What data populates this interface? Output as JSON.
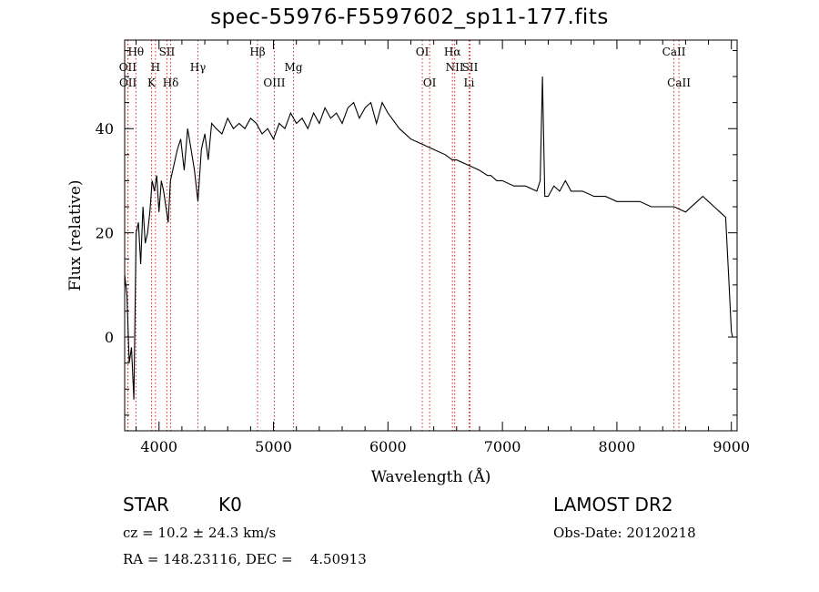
{
  "chart_data": {
    "type": "line",
    "title": "spec-55976-F5597602_sp11-177.fits",
    "xlabel": "Wavelength (Å)",
    "ylabel": "Flux (relative)",
    "xlim": [
      3700,
      9050
    ],
    "ylim": [
      -18,
      57
    ],
    "xticks": [
      4000,
      5000,
      6000,
      7000,
      8000,
      9000
    ],
    "yticks": [
      0,
      20,
      40
    ],
    "grid": false,
    "series": [
      {
        "x": [
          3700,
          3720,
          3740,
          3760,
          3780,
          3800,
          3820,
          3840,
          3860,
          3880,
          3900,
          3920,
          3940,
          3960,
          3980,
          4000,
          4020,
          4040,
          4060,
          4080,
          4100,
          4130,
          4160,
          4190,
          4220,
          4250,
          4280,
          4310,
          4340,
          4370,
          4400,
          4430,
          4460,
          4500,
          4550,
          4600,
          4650,
          4700,
          4750,
          4800,
          4850,
          4900,
          4950,
          5000,
          5050,
          5100,
          5150,
          5200,
          5250,
          5300,
          5350,
          5400,
          5450,
          5500,
          5550,
          5600,
          5650,
          5700,
          5750,
          5800,
          5850,
          5900,
          5950,
          6000,
          6100,
          6200,
          6300,
          6400,
          6500,
          6563,
          6600,
          6700,
          6800,
          6870,
          6900,
          6950,
          7000,
          7100,
          7200,
          7300,
          7330,
          7350,
          7370,
          7400,
          7450,
          7500,
          7550,
          7600,
          7700,
          7800,
          7900,
          8000,
          8100,
          8200,
          8300,
          8400,
          8500,
          8600,
          8700,
          8750,
          8800,
          8850,
          8900,
          8950,
          8980,
          9000,
          9010
        ],
        "values": [
          12,
          8,
          -5,
          -2,
          -12,
          20,
          22,
          14,
          25,
          18,
          20,
          24,
          30,
          28,
          31,
          24,
          30,
          28,
          25,
          22,
          30,
          33,
          36,
          38,
          32,
          40,
          36,
          32,
          26,
          36,
          39,
          34,
          41,
          40,
          39,
          42,
          40,
          41,
          40,
          42,
          41,
          39,
          40,
          38,
          41,
          40,
          43,
          41,
          42,
          40,
          43,
          41,
          44,
          42,
          43,
          41,
          44,
          45,
          42,
          44,
          45,
          41,
          45,
          43,
          40,
          38,
          37,
          36,
          35,
          34,
          34,
          33,
          32,
          31,
          31,
          30,
          30,
          29,
          29,
          28,
          30,
          50,
          27,
          27,
          29,
          28,
          30,
          28,
          28,
          27,
          27,
          26,
          26,
          26,
          25,
          25,
          25,
          24,
          26,
          27,
          26,
          25,
          24,
          23,
          10,
          1,
          0
        ]
      }
    ],
    "line_markers": [
      {
        "label": "Hθ",
        "x": 3798,
        "row": 0
      },
      {
        "label": "SII",
        "x": 4069,
        "row": 0
      },
      {
        "label": "Hβ",
        "x": 4861,
        "row": 0
      },
      {
        "label": "OI",
        "x": 6300,
        "row": 0
      },
      {
        "label": "Hα",
        "x": 6563,
        "row": 0
      },
      {
        "label": "CaII",
        "x": 8498,
        "row": 0
      },
      {
        "label": "OII",
        "x": 3727,
        "row": 1
      },
      {
        "label": "H",
        "x": 3969,
        "row": 1
      },
      {
        "label": "Hγ",
        "x": 4340,
        "row": 1
      },
      {
        "label": "Mg",
        "x": 5175,
        "row": 1
      },
      {
        "label": "NII",
        "x": 6583,
        "row": 1
      },
      {
        "label": "SII",
        "x": 6717,
        "row": 1
      },
      {
        "label": "OII",
        "x": 3729,
        "row": 2
      },
      {
        "label": "K",
        "x": 3934,
        "row": 2
      },
      {
        "label": "Hδ",
        "x": 4102,
        "row": 2
      },
      {
        "label": "OIII",
        "x": 5007,
        "row": 2
      },
      {
        "label": "OI",
        "x": 6364,
        "row": 2
      },
      {
        "label": "Li",
        "x": 6708,
        "row": 2
      },
      {
        "label": "CaII",
        "x": 8542,
        "row": 2
      }
    ],
    "marker_color": "#d62728",
    "line_color": "#000000"
  },
  "info": {
    "object_class": "STAR",
    "subclass": "K0",
    "survey": "LAMOST DR2",
    "redshift": "cz = 10.2 ± 24.3 km/s",
    "obs_date": "Obs-Date: 20120218",
    "coords": "RA = 148.23116, DEC =    4.50913"
  }
}
